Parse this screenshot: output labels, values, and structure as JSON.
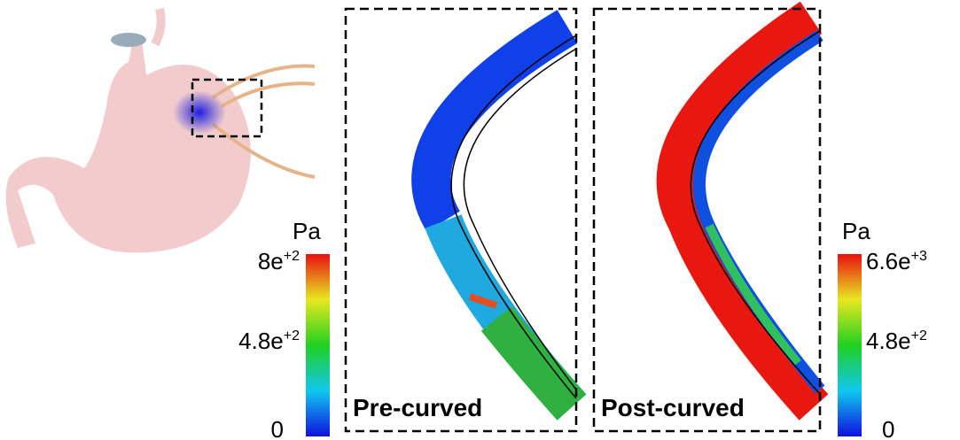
{
  "left_colorbar": {
    "unit": "Pa",
    "ticks": [
      {
        "base": "8e",
        "sup": "+2"
      },
      {
        "base": "4.8e",
        "sup": "+2"
      },
      {
        "base": "0",
        "sup": ""
      }
    ]
  },
  "panels": [
    {
      "label": "Pre-curved"
    },
    {
      "label": "Post-curved"
    }
  ],
  "right_colorbar": {
    "unit": "Pa",
    "ticks": [
      {
        "base": "6.6e",
        "sup": "+3"
      },
      {
        "base": "4.8e",
        "sup": "+2"
      },
      {
        "base": "0",
        "sup": ""
      }
    ]
  }
}
